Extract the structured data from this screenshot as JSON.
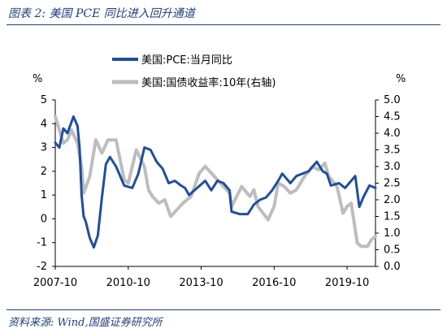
{
  "figure": {
    "title": "图表 2:  美国 PCE 同比进入回升通道",
    "source": "资料来源:  Wind,国盛证券研究所"
  },
  "colors": {
    "pce": "#1f4e9c",
    "yield": "#bdbdbd",
    "accent": "#1f3f7a"
  },
  "chart_data": {
    "type": "line",
    "title": "美国 PCE 同比进入回升通道",
    "y_unit_left": "%",
    "y_unit_right": "%",
    "ylim_left": [
      -2,
      5
    ],
    "ylim_right": [
      0,
      5
    ],
    "y_ticks_left": [
      5,
      4,
      3,
      2,
      1,
      0,
      -1,
      -2
    ],
    "y_ticks_right": [
      "5.0",
      "4.5",
      "4.0",
      "3.5",
      "3.0",
      "2.5",
      "2.0",
      "1.5",
      "1.0",
      "0.5",
      "0.0"
    ],
    "x_ticks": [
      "2007-10",
      "2010-10",
      "2013-10",
      "2016-10",
      "2019-10"
    ],
    "x_range": [
      "2007-10",
      "2020-12"
    ],
    "legend_position": "top-left",
    "series": [
      {
        "name": "美国:PCE:当月同比",
        "axis": "left",
        "x": [
          "2007-10",
          "2007-12",
          "2008-02",
          "2008-04",
          "2008-07",
          "2008-09",
          "2008-10",
          "2008-11",
          "2008-12",
          "2009-01",
          "2009-03",
          "2009-05",
          "2009-07",
          "2009-09",
          "2009-11",
          "2010-01",
          "2010-04",
          "2010-08",
          "2010-12",
          "2011-03",
          "2011-06",
          "2011-09",
          "2011-12",
          "2012-03",
          "2012-06",
          "2012-09",
          "2012-12",
          "2013-02",
          "2013-04",
          "2013-08",
          "2013-12",
          "2014-03",
          "2014-06",
          "2014-09",
          "2014-12",
          "2015-01",
          "2015-05",
          "2015-09",
          "2015-12",
          "2016-03",
          "2016-06",
          "2016-09",
          "2016-12",
          "2017-02",
          "2017-06",
          "2017-09",
          "2017-12",
          "2018-03",
          "2018-07",
          "2018-10",
          "2018-12",
          "2019-02",
          "2019-06",
          "2019-09",
          "2019-12",
          "2020-02",
          "2020-04",
          "2020-06",
          "2020-09",
          "2020-12"
        ],
        "values": [
          3.2,
          3.0,
          3.8,
          3.6,
          4.3,
          3.9,
          3.0,
          1.0,
          0.1,
          -0.1,
          -0.8,
          -1.2,
          -0.7,
          0.9,
          2.3,
          2.6,
          2.2,
          1.4,
          1.3,
          1.9,
          3.0,
          2.9,
          2.4,
          2.1,
          1.5,
          1.6,
          1.4,
          1.3,
          1.0,
          1.3,
          1.6,
          1.2,
          1.6,
          1.5,
          1.2,
          0.3,
          0.2,
          0.2,
          0.6,
          0.8,
          0.9,
          1.2,
          1.6,
          1.9,
          1.5,
          1.8,
          1.9,
          2.0,
          2.4,
          2.0,
          1.9,
          1.4,
          1.5,
          1.3,
          1.6,
          1.8,
          0.5,
          0.9,
          1.4,
          1.3
        ]
      },
      {
        "name": "美国:国债收益率:10年(右轴)",
        "axis": "right",
        "x": [
          "2007-10",
          "2007-12",
          "2008-02",
          "2008-04",
          "2008-06",
          "2008-09",
          "2008-11",
          "2008-12",
          "2009-03",
          "2009-06",
          "2009-09",
          "2009-12",
          "2010-04",
          "2010-08",
          "2010-10",
          "2011-02",
          "2011-06",
          "2011-08",
          "2011-10",
          "2012-01",
          "2012-04",
          "2012-07",
          "2012-10",
          "2013-01",
          "2013-05",
          "2013-09",
          "2013-12",
          "2014-06",
          "2014-12",
          "2015-01",
          "2015-06",
          "2015-10",
          "2015-12",
          "2016-02",
          "2016-07",
          "2016-10",
          "2016-12",
          "2017-03",
          "2017-06",
          "2017-09",
          "2018-01",
          "2018-05",
          "2018-08",
          "2018-11",
          "2019-01",
          "2019-05",
          "2019-08",
          "2019-10",
          "2019-12",
          "2020-03",
          "2020-05",
          "2020-08",
          "2020-10",
          "2020-12"
        ],
        "values": [
          4.5,
          4.1,
          3.7,
          3.8,
          4.1,
          3.7,
          3.0,
          2.2,
          2.7,
          3.8,
          3.4,
          3.8,
          3.8,
          2.6,
          2.5,
          3.5,
          3.0,
          2.3,
          2.1,
          1.9,
          2.0,
          1.5,
          1.7,
          1.9,
          2.1,
          2.8,
          3.0,
          2.6,
          2.2,
          1.8,
          2.4,
          2.1,
          2.3,
          1.8,
          1.4,
          1.8,
          2.5,
          2.4,
          2.2,
          2.3,
          2.7,
          3.0,
          2.9,
          3.1,
          2.7,
          2.4,
          1.6,
          1.8,
          1.9,
          0.7,
          0.6,
          0.6,
          0.8,
          0.9
        ]
      }
    ]
  }
}
